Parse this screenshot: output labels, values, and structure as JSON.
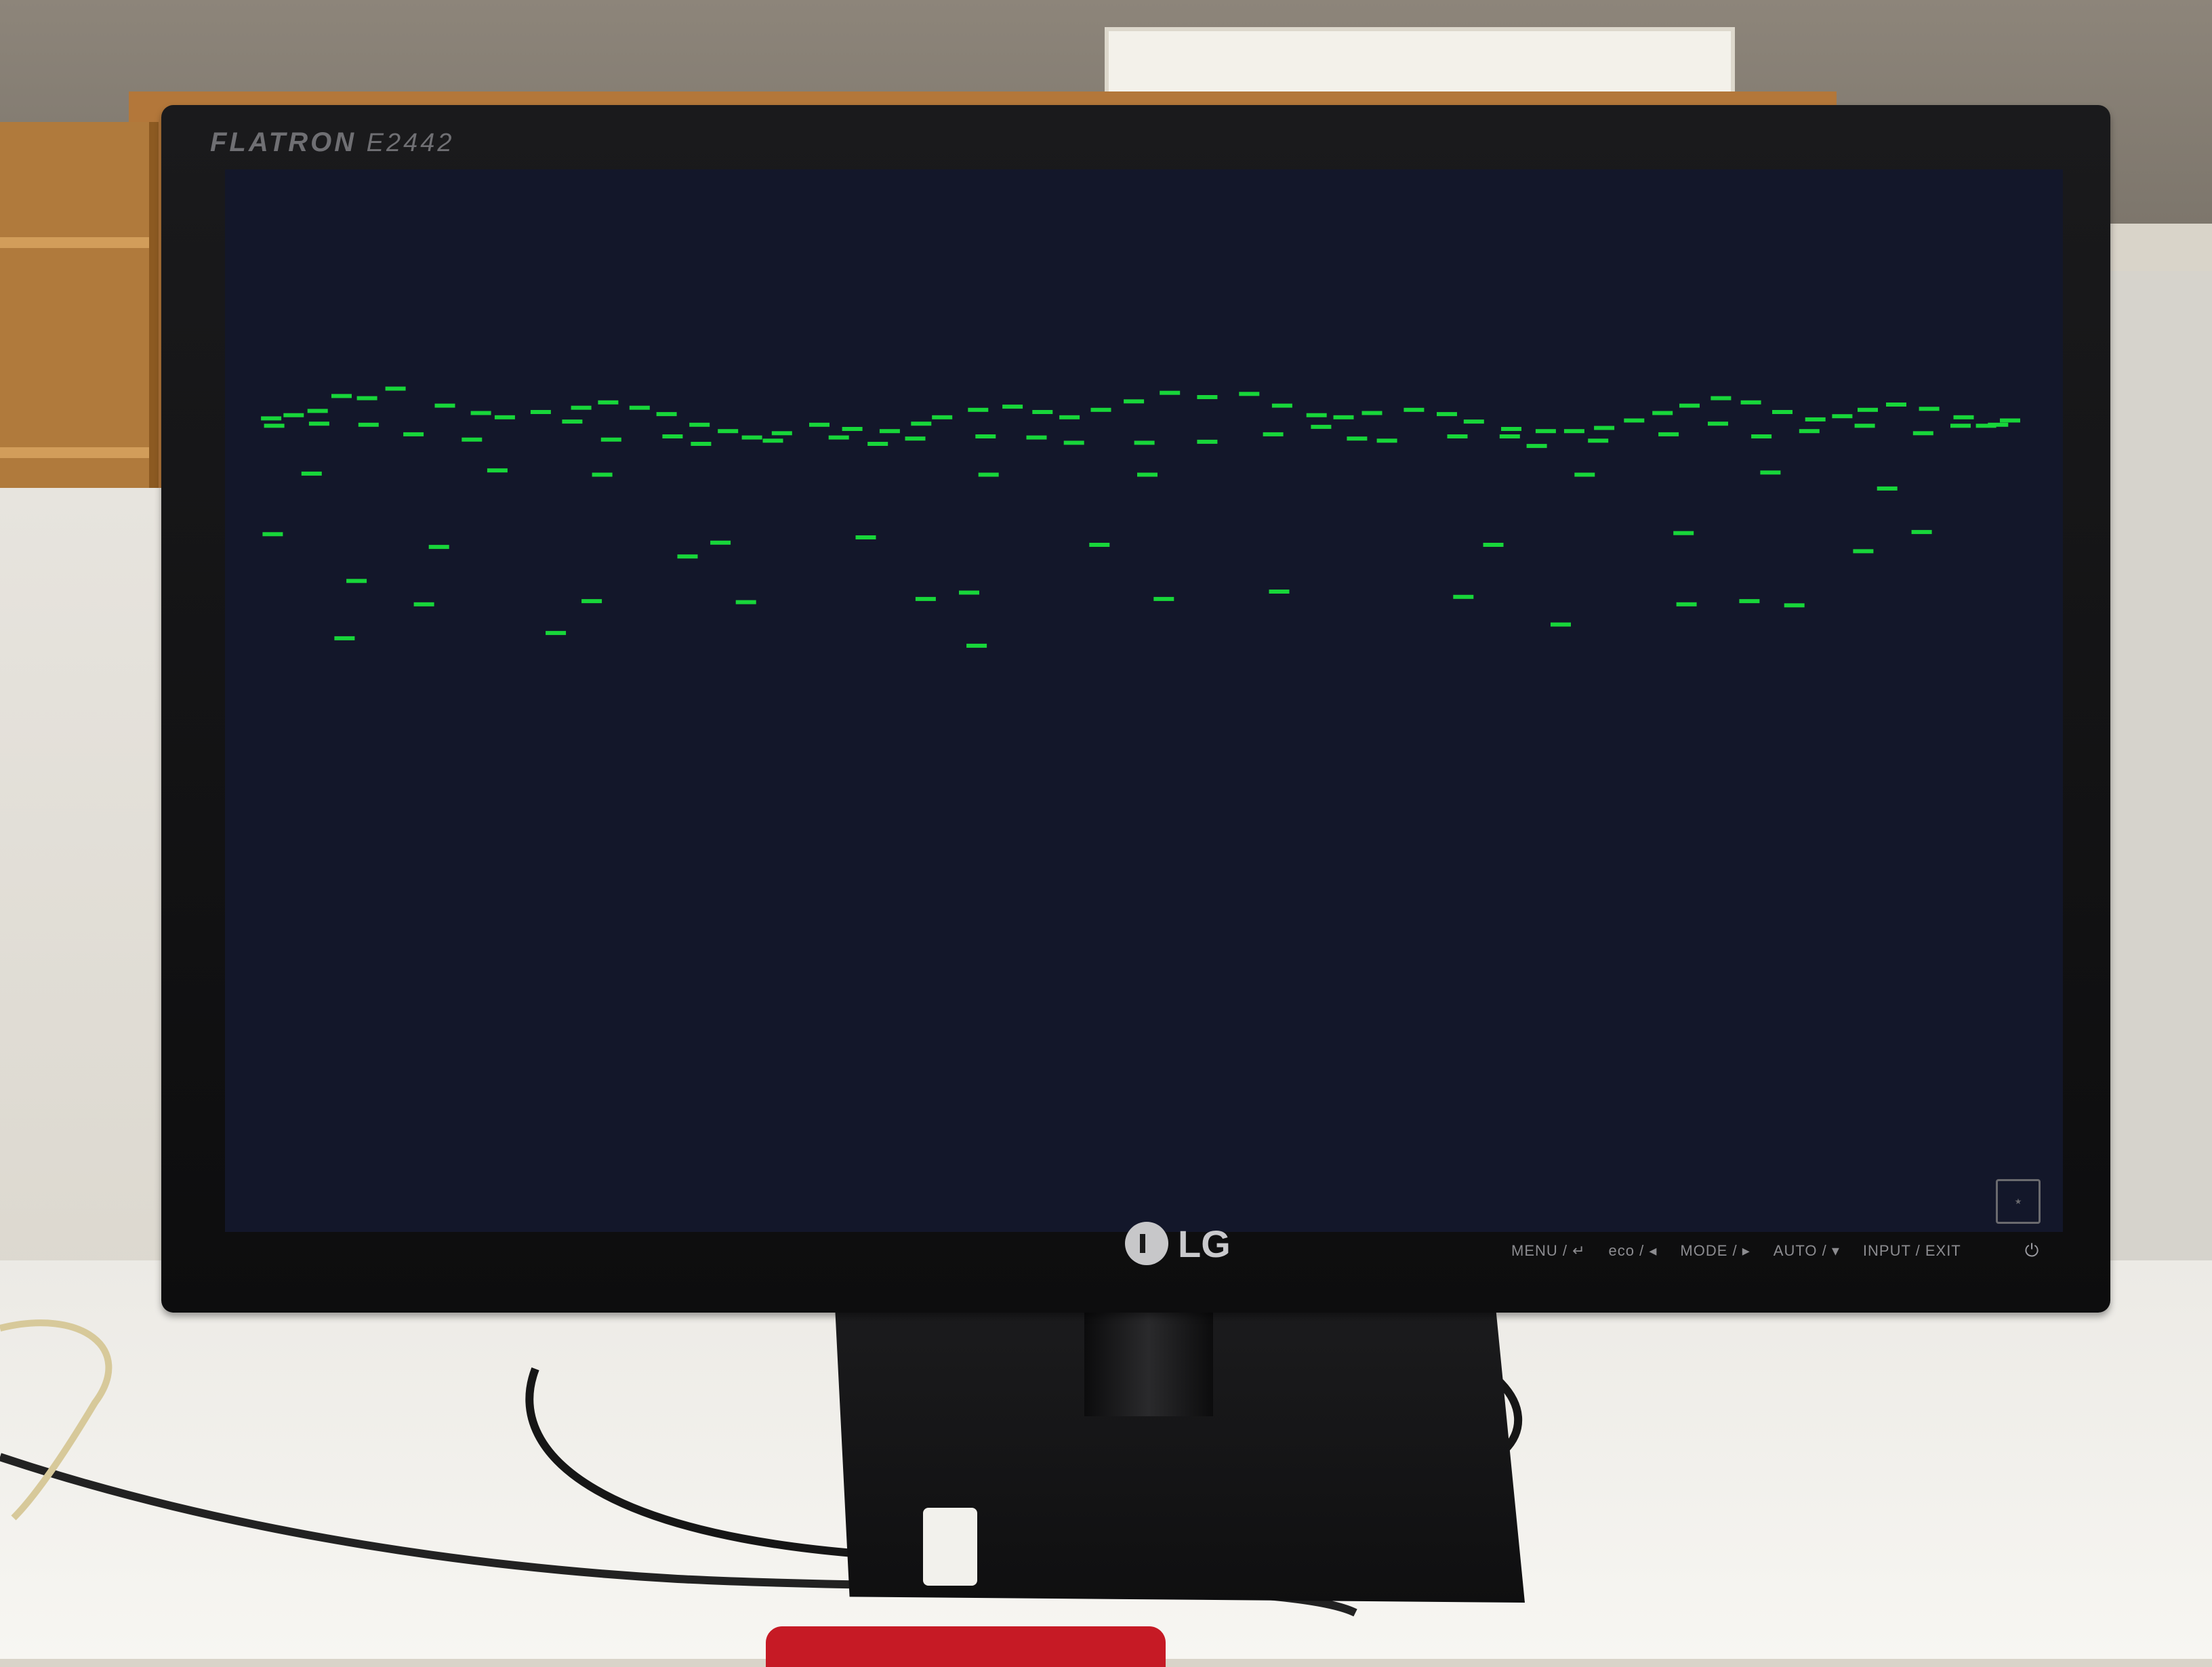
{
  "monitor": {
    "brand": "LG",
    "series": "FLATRON",
    "model": "E2442",
    "controls": [
      "MENU / ↵",
      "eco / ◂",
      "MODE / ▸",
      "AUTO / ▾",
      "INPUT / EXIT"
    ],
    "power_icon": "power-icon"
  },
  "screen": {
    "background": "#13172a",
    "trace_color": "#18d63a",
    "segments": [
      [
        0.015,
        0.226
      ],
      [
        0.03,
        0.223
      ],
      [
        0.046,
        0.219
      ],
      [
        0.062,
        0.205
      ],
      [
        0.079,
        0.207
      ],
      [
        0.098,
        0.198
      ],
      [
        0.131,
        0.214
      ],
      [
        0.155,
        0.221
      ],
      [
        0.171,
        0.225
      ],
      [
        0.195,
        0.22
      ],
      [
        0.222,
        0.216
      ],
      [
        0.24,
        0.211
      ],
      [
        0.261,
        0.216
      ],
      [
        0.279,
        0.222
      ],
      [
        0.301,
        0.232
      ],
      [
        0.32,
        0.238
      ],
      [
        0.336,
        0.244
      ],
      [
        0.356,
        0.24
      ],
      [
        0.381,
        0.232
      ],
      [
        0.403,
        0.236
      ],
      [
        0.428,
        0.238
      ],
      [
        0.449,
        0.231
      ],
      [
        0.463,
        0.225
      ],
      [
        0.487,
        0.218
      ],
      [
        0.51,
        0.215
      ],
      [
        0.53,
        0.22
      ],
      [
        0.548,
        0.225
      ],
      [
        0.569,
        0.218
      ],
      [
        0.591,
        0.21
      ],
      [
        0.615,
        0.202
      ],
      [
        0.64,
        0.206
      ],
      [
        0.668,
        0.203
      ],
      [
        0.69,
        0.214
      ],
      [
        0.713,
        0.223
      ],
      [
        0.731,
        0.225
      ],
      [
        0.75,
        0.221
      ],
      [
        0.778,
        0.218
      ],
      [
        0.8,
        0.222
      ],
      [
        0.818,
        0.229
      ],
      [
        0.843,
        0.236
      ],
      [
        0.866,
        0.238
      ],
      [
        0.885,
        0.238
      ],
      [
        0.905,
        0.235
      ],
      [
        0.925,
        0.228
      ],
      [
        0.944,
        0.221
      ],
      [
        0.962,
        0.214
      ],
      [
        0.983,
        0.207
      ],
      [
        1.003,
        0.211
      ],
      [
        1.024,
        0.22
      ],
      [
        1.046,
        0.227
      ],
      [
        1.064,
        0.224
      ],
      [
        1.081,
        0.218
      ],
      [
        1.1,
        0.213
      ],
      [
        1.122,
        0.217
      ],
      [
        1.145,
        0.225
      ],
      [
        1.16,
        0.233
      ],
      [
        1.176,
        0.228
      ],
      [
        0.017,
        0.233
      ],
      [
        0.047,
        0.231
      ],
      [
        0.08,
        0.232
      ],
      [
        0.11,
        0.241
      ],
      [
        0.149,
        0.246
      ],
      [
        0.216,
        0.229
      ],
      [
        0.242,
        0.246
      ],
      [
        0.283,
        0.243
      ],
      [
        0.302,
        0.25
      ],
      [
        0.35,
        0.247
      ],
      [
        0.394,
        0.244
      ],
      [
        0.42,
        0.25
      ],
      [
        0.445,
        0.245
      ],
      [
        0.492,
        0.243
      ],
      [
        0.526,
        0.244
      ],
      [
        0.551,
        0.249
      ],
      [
        0.598,
        0.249
      ],
      [
        0.64,
        0.248
      ],
      [
        0.684,
        0.241
      ],
      [
        0.716,
        0.234
      ],
      [
        0.74,
        0.245
      ],
      [
        0.76,
        0.247
      ],
      [
        0.807,
        0.243
      ],
      [
        0.842,
        0.243
      ],
      [
        0.86,
        0.252
      ],
      [
        0.901,
        0.247
      ],
      [
        0.948,
        0.241
      ],
      [
        0.981,
        0.231
      ],
      [
        1.01,
        0.243
      ],
      [
        1.042,
        0.238
      ],
      [
        1.079,
        0.233
      ],
      [
        1.118,
        0.24
      ],
      [
        1.143,
        0.233
      ],
      [
        1.168,
        0.232
      ],
      [
        0.042,
        0.278
      ],
      [
        0.166,
        0.275
      ],
      [
        0.236,
        0.279
      ],
      [
        0.494,
        0.279
      ],
      [
        0.6,
        0.279
      ],
      [
        0.892,
        0.279
      ],
      [
        1.016,
        0.277
      ],
      [
        1.094,
        0.292
      ],
      [
        0.016,
        0.335
      ],
      [
        0.127,
        0.347
      ],
      [
        0.293,
        0.356
      ],
      [
        0.315,
        0.343
      ],
      [
        0.412,
        0.338
      ],
      [
        0.568,
        0.345
      ],
      [
        0.831,
        0.345
      ],
      [
        0.958,
        0.334
      ],
      [
        1.078,
        0.351
      ],
      [
        1.117,
        0.333
      ],
      [
        0.072,
        0.379
      ],
      [
        0.481,
        0.39
      ],
      [
        0.688,
        0.389
      ],
      [
        0.876,
        0.42
      ],
      [
        0.064,
        0.433
      ],
      [
        0.205,
        0.428
      ],
      [
        0.486,
        0.44
      ],
      [
        1.032,
        0.402
      ],
      [
        0.117,
        0.401
      ],
      [
        0.229,
        0.398
      ],
      [
        0.332,
        0.399
      ],
      [
        0.452,
        0.396
      ],
      [
        0.611,
        0.396
      ],
      [
        0.811,
        0.394
      ],
      [
        0.96,
        0.401
      ],
      [
        1.002,
        0.398
      ]
    ]
  }
}
